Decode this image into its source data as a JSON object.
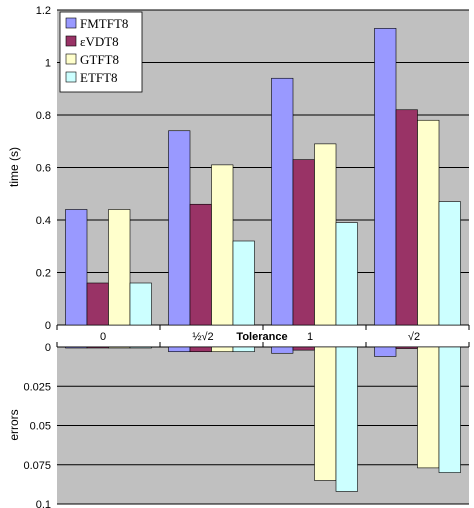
{
  "chart_data": [
    {
      "type": "bar",
      "categories": [
        "0",
        "½√2",
        "1",
        "√2"
      ],
      "xlabel": "Tolerance",
      "ylabel": "time (s)",
      "ylim": [
        0,
        1.2
      ],
      "yticks": [
        "0",
        "0.2",
        "0.4",
        "0.6",
        "0.8",
        "1",
        "1.2"
      ],
      "grid": true,
      "legend": "top-left",
      "series": [
        {
          "name": "FMTFT8",
          "color": "#9999ff",
          "values": [
            0.44,
            0.74,
            0.94,
            1.13
          ]
        },
        {
          "name": "εVDT8",
          "color": "#993366",
          "values": [
            0.16,
            0.46,
            0.63,
            0.82
          ]
        },
        {
          "name": "GTFT8",
          "color": "#ffffcc",
          "values": [
            0.44,
            0.61,
            0.69,
            0.78
          ]
        },
        {
          "name": "ETFT8",
          "color": "#ccffff",
          "values": [
            0.16,
            0.32,
            0.39,
            0.47
          ]
        }
      ]
    },
    {
      "type": "bar",
      "categories": [
        "0",
        "½√2",
        "1",
        "√2"
      ],
      "ylabel": "errors",
      "ylim": [
        0,
        0.1
      ],
      "yaxis_inverted": true,
      "yticks": [
        "0",
        "0.025",
        "0.05",
        "0.075",
        "0.1"
      ],
      "grid": true,
      "series": [
        {
          "name": "FMTFT8",
          "color": "#9999ff",
          "values": [
            0.0,
            0.003,
            0.004,
            0.006
          ]
        },
        {
          "name": "εVDT8",
          "color": "#993366",
          "values": [
            0.0005,
            0.003,
            0.002,
            0.001
          ]
        },
        {
          "name": "GTFT8",
          "color": "#ffffcc",
          "values": [
            0.0,
            0.003,
            0.085,
            0.077
          ]
        },
        {
          "name": "ETFT8",
          "color": "#ccffff",
          "values": [
            0.0,
            0.003,
            0.092,
            0.08
          ]
        }
      ]
    }
  ],
  "colors": {
    "plot_bg": "#c0c0c0",
    "grid": "#000000"
  }
}
